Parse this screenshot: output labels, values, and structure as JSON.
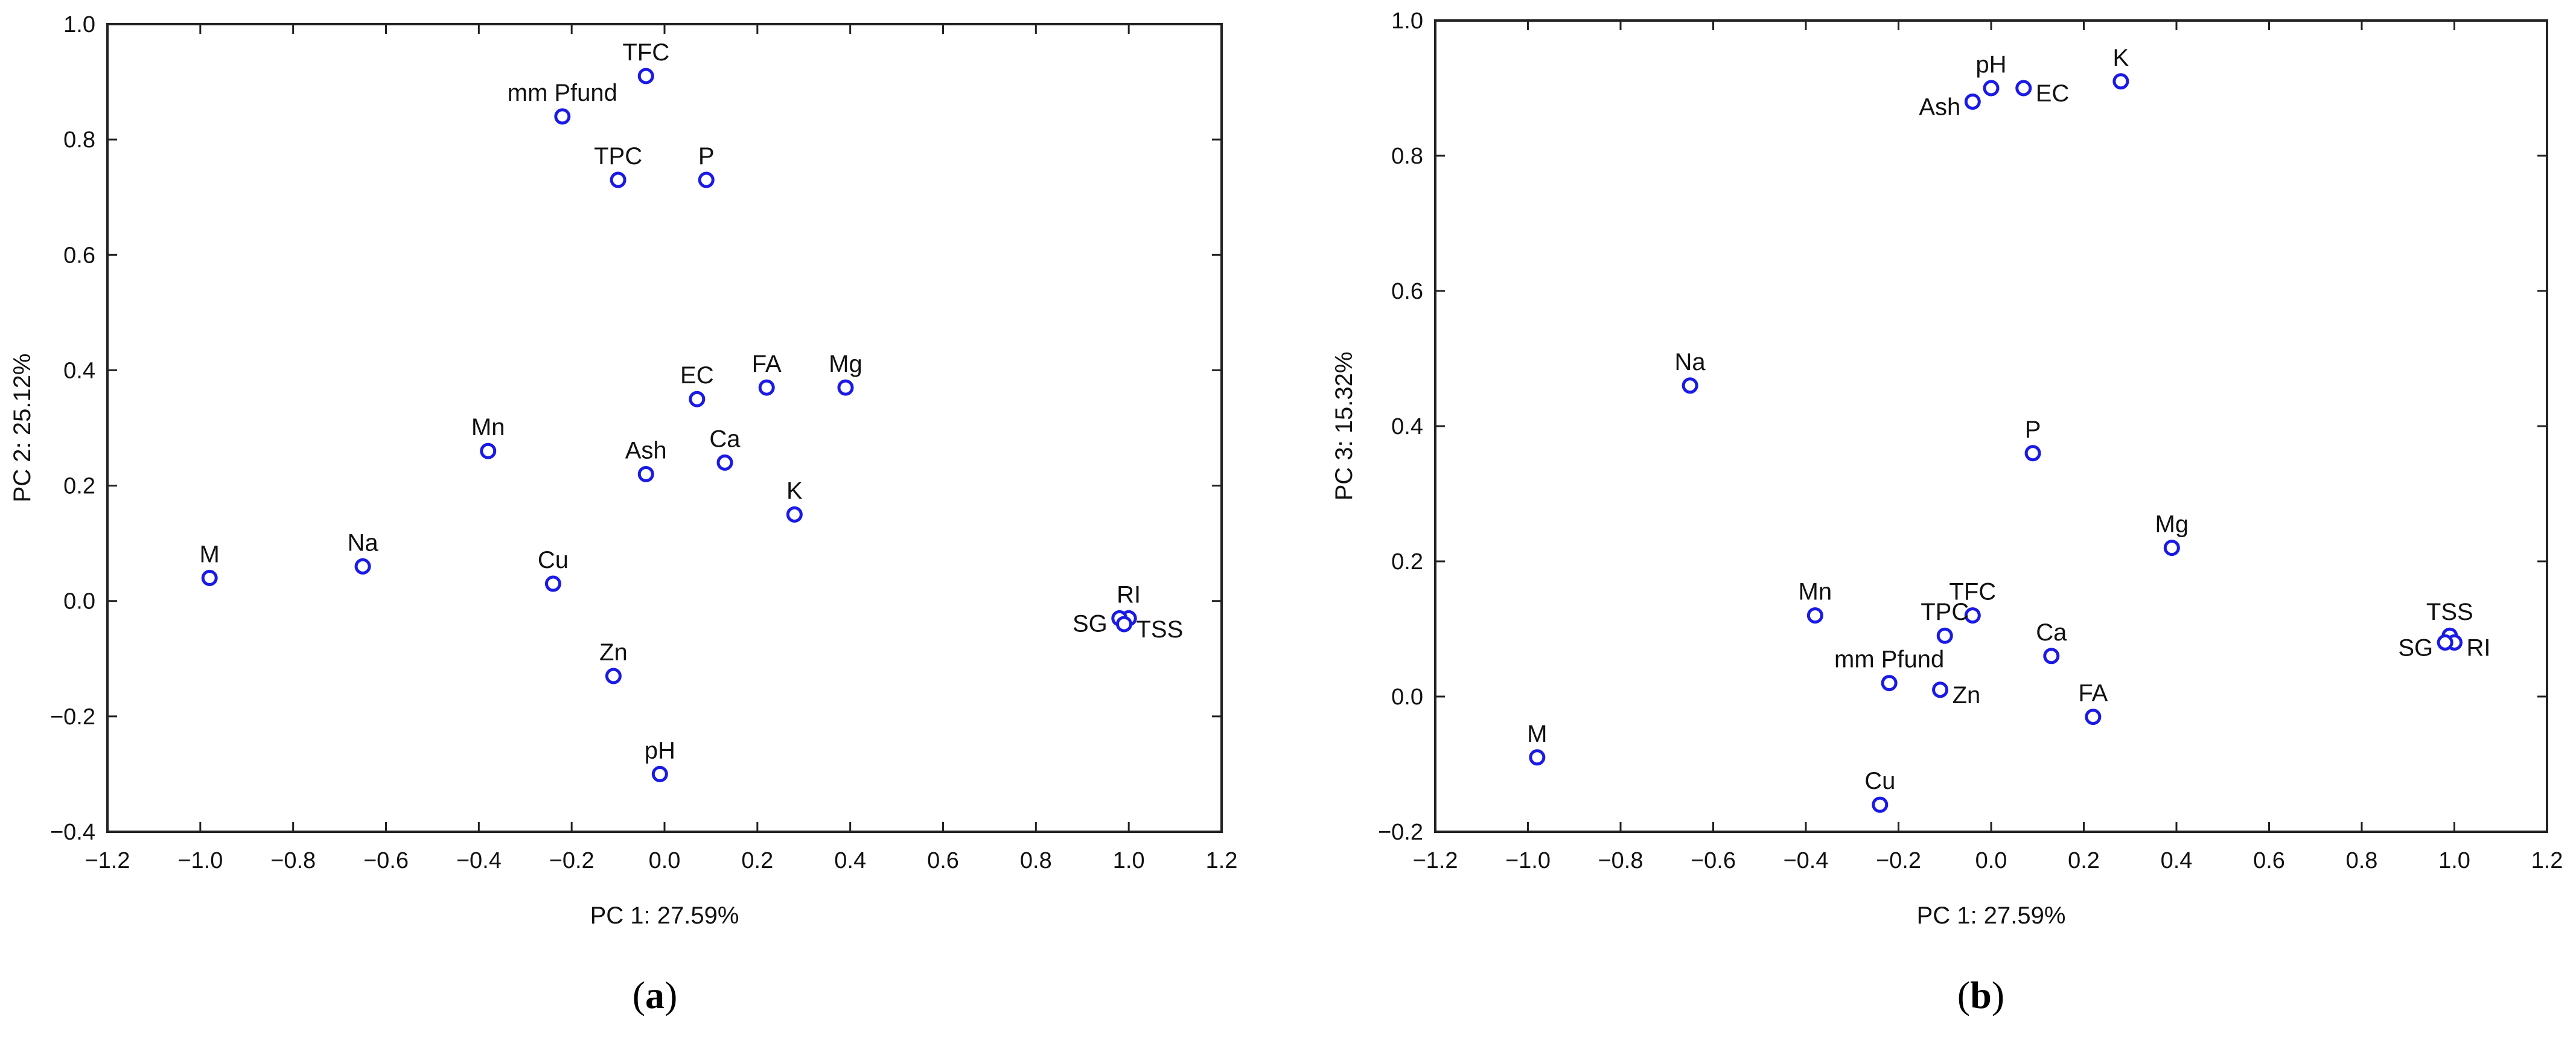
{
  "figure": {
    "marker_color": "#1a1ae6",
    "frame_color": "#222222"
  },
  "chart_data": [
    {
      "type": "scatter",
      "panel_tag": "(a)",
      "panel_letter": "a",
      "xlabel": "PC 1: 27.59%",
      "ylabel": "PC 2: 25.12%",
      "xlim": [
        -1.2,
        1.2
      ],
      "ylim": [
        -0.4,
        1.0
      ],
      "xticks": [
        "−1.2",
        "−1.0",
        "−0.8",
        "−0.6",
        "−0.4",
        "−0.2",
        "0.0",
        "0.2",
        "0.4",
        "0.6",
        "0.8",
        "1.0",
        "1.2"
      ],
      "yticks": [
        "−0.4",
        "−0.2",
        "0.0",
        "0.2",
        "0.4",
        "0.6",
        "0.8",
        "1.0"
      ],
      "points": [
        {
          "label": "TFC",
          "x": -0.04,
          "y": 0.91,
          "pos": "top"
        },
        {
          "label": "mm Pfund",
          "x": -0.22,
          "y": 0.84,
          "pos": "top"
        },
        {
          "label": "TPC",
          "x": -0.1,
          "y": 0.73,
          "pos": "top"
        },
        {
          "label": "P",
          "x": 0.09,
          "y": 0.73,
          "pos": "top"
        },
        {
          "label": "EC",
          "x": 0.07,
          "y": 0.35,
          "pos": "top"
        },
        {
          "label": "FA",
          "x": 0.22,
          "y": 0.37,
          "pos": "top"
        },
        {
          "label": "Mg",
          "x": 0.39,
          "y": 0.37,
          "pos": "top"
        },
        {
          "label": "Mn",
          "x": -0.38,
          "y": 0.26,
          "pos": "top"
        },
        {
          "label": "Ash",
          "x": -0.04,
          "y": 0.22,
          "pos": "top"
        },
        {
          "label": "Ca",
          "x": 0.13,
          "y": 0.24,
          "pos": "top"
        },
        {
          "label": "K",
          "x": 0.28,
          "y": 0.15,
          "pos": "top"
        },
        {
          "label": "M",
          "x": -0.98,
          "y": 0.04,
          "pos": "top"
        },
        {
          "label": "Na",
          "x": -0.65,
          "y": 0.06,
          "pos": "top"
        },
        {
          "label": "Cu",
          "x": -0.24,
          "y": 0.03,
          "pos": "top"
        },
        {
          "label": "RI",
          "x": 1.0,
          "y": -0.03,
          "pos": "top"
        },
        {
          "label": "SG",
          "x": 0.98,
          "y": -0.03,
          "pos": "left"
        },
        {
          "label": "TSS",
          "x": 0.99,
          "y": -0.04,
          "pos": "right"
        },
        {
          "label": "Zn",
          "x": -0.11,
          "y": -0.13,
          "pos": "top"
        },
        {
          "label": "pH",
          "x": -0.01,
          "y": -0.3,
          "pos": "top"
        }
      ]
    },
    {
      "type": "scatter",
      "panel_tag": "(b)",
      "panel_letter": "b",
      "xlabel": "PC 1: 27.59%",
      "ylabel": "PC 3: 15.32%",
      "xlim": [
        -1.2,
        1.2
      ],
      "ylim": [
        -0.2,
        1.0
      ],
      "xticks": [
        "−1.2",
        "−1.0",
        "−0.8",
        "−0.6",
        "−0.4",
        "−0.2",
        "0.0",
        "0.2",
        "0.4",
        "0.6",
        "0.8",
        "1.0",
        "1.2"
      ],
      "yticks": [
        "−0.2",
        "0.0",
        "0.2",
        "0.4",
        "0.6",
        "0.8",
        "1.0"
      ],
      "points": [
        {
          "label": "pH",
          "x": 0.0,
          "y": 0.9,
          "pos": "top"
        },
        {
          "label": "EC",
          "x": 0.07,
          "y": 0.9,
          "pos": "right"
        },
        {
          "label": "Ash",
          "x": -0.04,
          "y": 0.88,
          "pos": "left"
        },
        {
          "label": "K",
          "x": 0.28,
          "y": 0.91,
          "pos": "top"
        },
        {
          "label": "Na",
          "x": -0.65,
          "y": 0.46,
          "pos": "top"
        },
        {
          "label": "P",
          "x": 0.09,
          "y": 0.36,
          "pos": "top"
        },
        {
          "label": "Mg",
          "x": 0.39,
          "y": 0.22,
          "pos": "top"
        },
        {
          "label": "Mn",
          "x": -0.38,
          "y": 0.12,
          "pos": "top"
        },
        {
          "label": "TFC",
          "x": -0.04,
          "y": 0.12,
          "pos": "top"
        },
        {
          "label": "TPC",
          "x": -0.1,
          "y": 0.09,
          "pos": "top"
        },
        {
          "label": "Ca",
          "x": 0.13,
          "y": 0.06,
          "pos": "top"
        },
        {
          "label": "mm Pfund",
          "x": -0.22,
          "y": 0.02,
          "pos": "top"
        },
        {
          "label": "Zn",
          "x": -0.11,
          "y": 0.01,
          "pos": "right"
        },
        {
          "label": "FA",
          "x": 0.22,
          "y": -0.03,
          "pos": "top"
        },
        {
          "label": "TSS",
          "x": 0.99,
          "y": 0.09,
          "pos": "top"
        },
        {
          "label": "RI",
          "x": 1.0,
          "y": 0.08,
          "pos": "right"
        },
        {
          "label": "SG",
          "x": 0.98,
          "y": 0.08,
          "pos": "left"
        },
        {
          "label": "M",
          "x": -0.98,
          "y": -0.09,
          "pos": "top"
        },
        {
          "label": "Cu",
          "x": -0.24,
          "y": -0.16,
          "pos": "top"
        }
      ]
    }
  ]
}
